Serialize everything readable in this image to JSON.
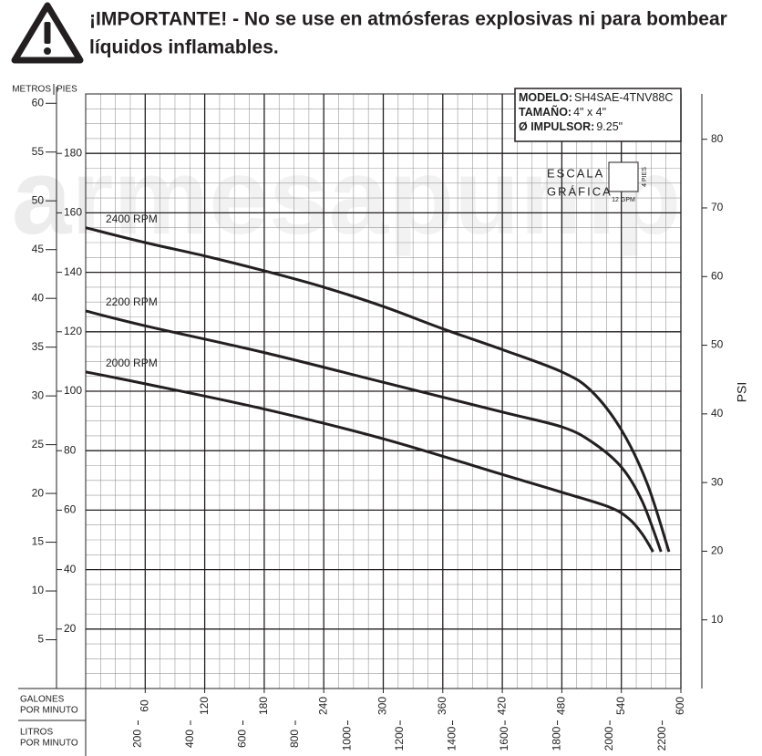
{
  "header": {
    "title_line1": "¡IMPORTANTE! - No se use en atmósferas explosivas ni para bombear",
    "title_line2": "líquidos inflamables."
  },
  "chart_data": {
    "type": "line",
    "watermark": "armesapump",
    "model": {
      "labels": [
        "MODELO:",
        "TAMAÑO:",
        "Ø IMPULSOR:"
      ],
      "values": [
        "SH4SAE-4TNV88C",
        "4\" x 4\"",
        "9.25\""
      ]
    },
    "scale_note": {
      "title": [
        "ESCALA",
        "GRÁFICA"
      ],
      "y": "4 PIES",
      "x": "12 GPM"
    },
    "xlabel": [
      "GALONES",
      "POR MINUTO"
    ],
    "x2label": [
      "LITROS",
      "POR MINUTO"
    ],
    "ylabel": "PIES",
    "y3label": "METROS",
    "y2label": "PSI",
    "xlim": [
      0,
      600
    ],
    "xticks": [
      60,
      120,
      180,
      240,
      300,
      360,
      420,
      480,
      540,
      600
    ],
    "x2lim": [
      0,
      2271
    ],
    "x2ticks": [
      200,
      400,
      600,
      800,
      1000,
      1200,
      1400,
      1600,
      1800,
      2000,
      2200
    ],
    "ylim": [
      0,
      200
    ],
    "yticks": [
      20,
      40,
      60,
      80,
      100,
      120,
      140,
      160,
      180
    ],
    "y3lim": [
      0,
      60.96
    ],
    "y3ticks": [
      5,
      10,
      15,
      20,
      25,
      30,
      35,
      40,
      45,
      50,
      55,
      60
    ],
    "y2lim": [
      0,
      86.6
    ],
    "y2ticks": [
      10,
      20,
      30,
      40,
      50,
      60,
      70,
      80
    ],
    "grid": true,
    "series": [
      {
        "name": "2400 RPM",
        "color": "#231f20",
        "x": [
          0,
          60,
          120,
          180,
          240,
          300,
          360,
          420,
          480,
          510,
          540,
          566,
          588
        ],
        "values": [
          155,
          150,
          145.5,
          140.5,
          135,
          128.5,
          121,
          114,
          106.5,
          100,
          87,
          69,
          46
        ]
      },
      {
        "name": "2200 RPM",
        "color": "#231f20",
        "x": [
          0,
          60,
          180,
          300,
          420,
          480,
          510,
          540,
          561,
          580
        ],
        "values": [
          127,
          122,
          113,
          103,
          93,
          88,
          83,
          74.5,
          63,
          46
        ]
      },
      {
        "name": "2000 RPM",
        "color": "#231f20",
        "x": [
          0,
          60,
          180,
          300,
          420,
          480,
          528,
          548,
          561,
          572
        ],
        "values": [
          106.5,
          102.5,
          94,
          84,
          72,
          66,
          61,
          57,
          52,
          46
        ]
      }
    ]
  }
}
